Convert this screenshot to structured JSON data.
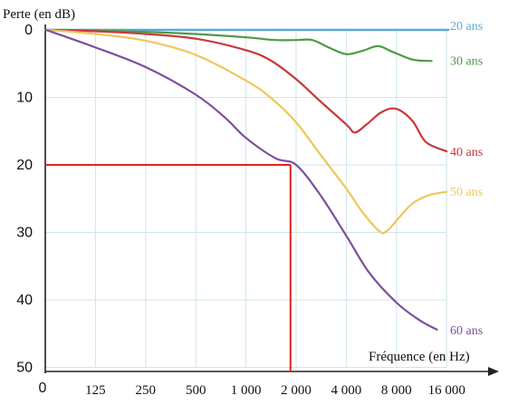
{
  "chart_data": {
    "type": "line",
    "ylabel": "Perte (en dB)",
    "xlabel": "Fréquence (en Hz)",
    "x_categories": [
      "125",
      "250",
      "500",
      "1 000",
      "2 000",
      "4 000",
      "8 000",
      "16 000"
    ],
    "x_origin_label": "0",
    "x_scale": "log2 (octaves)",
    "y_ticks": [
      "0",
      "10",
      "20",
      "30",
      "40",
      "50"
    ],
    "ylim": [
      0,
      50
    ],
    "y_inverted": true,
    "grid": true,
    "series": [
      {
        "name": "20 ans",
        "color": "#5aa9d6",
        "points": [
          [
            63,
            0
          ],
          [
            16000,
            0
          ]
        ]
      },
      {
        "name": "30 ans",
        "color": "#4e9a45",
        "points": [
          [
            63,
            0
          ],
          [
            125,
            0.1
          ],
          [
            250,
            0.3
          ],
          [
            500,
            0.6
          ],
          [
            1000,
            1.1
          ],
          [
            1500,
            1.5
          ],
          [
            2000,
            1.5
          ],
          [
            2500,
            1.5
          ],
          [
            3200,
            2.7
          ],
          [
            4000,
            3.6
          ],
          [
            5000,
            3.1
          ],
          [
            6200,
            2.4
          ],
          [
            7500,
            3.2
          ],
          [
            10000,
            4.4
          ],
          [
            13000,
            4.6
          ]
        ]
      },
      {
        "name": "40 ans",
        "color": "#c9393a",
        "points": [
          [
            63,
            0
          ],
          [
            125,
            0.2
          ],
          [
            250,
            0.6
          ],
          [
            500,
            1.3
          ],
          [
            1000,
            3.0
          ],
          [
            1400,
            4.5
          ],
          [
            2000,
            7.3
          ],
          [
            2800,
            10.6
          ],
          [
            4000,
            14.0
          ],
          [
            4500,
            15.2
          ],
          [
            5300,
            14.0
          ],
          [
            6500,
            12.2
          ],
          [
            8000,
            11.7
          ],
          [
            10000,
            13.5
          ],
          [
            12000,
            16.6
          ],
          [
            16000,
            18.0
          ]
        ]
      },
      {
        "name": "50 ans",
        "color": "#efc659",
        "points": [
          [
            63,
            0
          ],
          [
            125,
            0.6
          ],
          [
            250,
            1.6
          ],
          [
            500,
            3.7
          ],
          [
            1000,
            7.5
          ],
          [
            1400,
            10.0
          ],
          [
            2000,
            13.7
          ],
          [
            2800,
            18.5
          ],
          [
            4000,
            23.5
          ],
          [
            5000,
            27.0
          ],
          [
            6300,
            29.8
          ],
          [
            7000,
            29.8
          ],
          [
            8500,
            27.5
          ],
          [
            10000,
            25.7
          ],
          [
            12500,
            24.5
          ],
          [
            16000,
            24.0
          ]
        ]
      },
      {
        "name": "60 ans",
        "color": "#7d4f9c",
        "points": [
          [
            63,
            0
          ],
          [
            125,
            2.6
          ],
          [
            250,
            5.5
          ],
          [
            500,
            9.6
          ],
          [
            750,
            13.0
          ],
          [
            1000,
            16.0
          ],
          [
            1500,
            19.0
          ],
          [
            2000,
            20.0
          ],
          [
            2800,
            24.5
          ],
          [
            4000,
            30.5
          ],
          [
            5500,
            36.0
          ],
          [
            8000,
            40.4
          ],
          [
            11000,
            43.0
          ],
          [
            14000,
            44.4
          ]
        ]
      }
    ],
    "annotation": {
      "type": "reading-lines",
      "color": "#e62020",
      "x": 1850,
      "y": 20
    }
  }
}
